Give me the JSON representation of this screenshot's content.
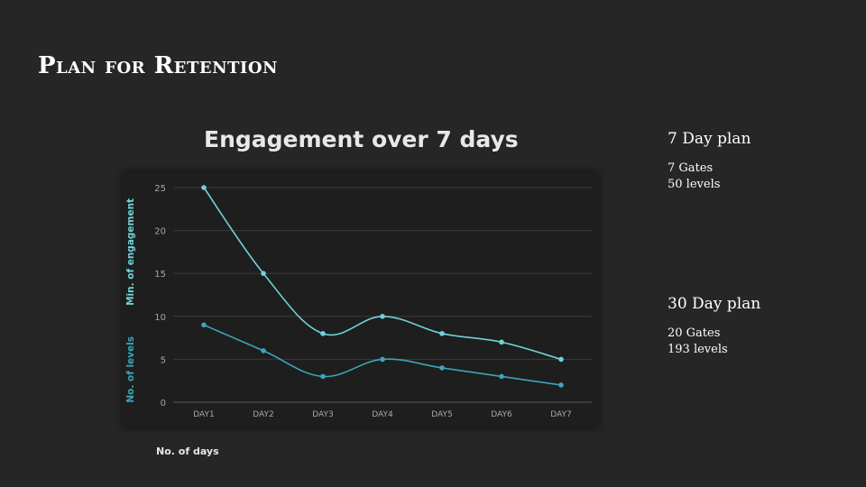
{
  "slide": {
    "title": "Plan for Retention"
  },
  "plans": [
    {
      "heading": "7 Day plan",
      "gates": "7 Gates",
      "levels": "50 levels"
    },
    {
      "heading": "30 Day plan",
      "gates": "20 Gates",
      "levels": "193 levels"
    }
  ],
  "chart_data": {
    "type": "line",
    "title": "Engagement over 7 days",
    "xlabel": "No. of days",
    "ylabel_series": [
      "Min. of engagement",
      "No. of levels"
    ],
    "categories": [
      "DAY1",
      "DAY2",
      "DAY3",
      "DAY4",
      "DAY5",
      "DAY6",
      "DAY7"
    ],
    "series": [
      {
        "name": "Min. of engagement",
        "values": [
          25,
          15,
          8,
          10,
          8,
          7,
          5
        ],
        "color": "#6fd3d8"
      },
      {
        "name": "No. of levels",
        "values": [
          9,
          6,
          3,
          5,
          4,
          3,
          2
        ],
        "color": "#3aa6b9"
      }
    ],
    "ylim": [
      0,
      25
    ],
    "yticks": [
      0,
      5,
      10,
      15,
      20,
      25
    ],
    "grid": true,
    "smooth": true
  }
}
